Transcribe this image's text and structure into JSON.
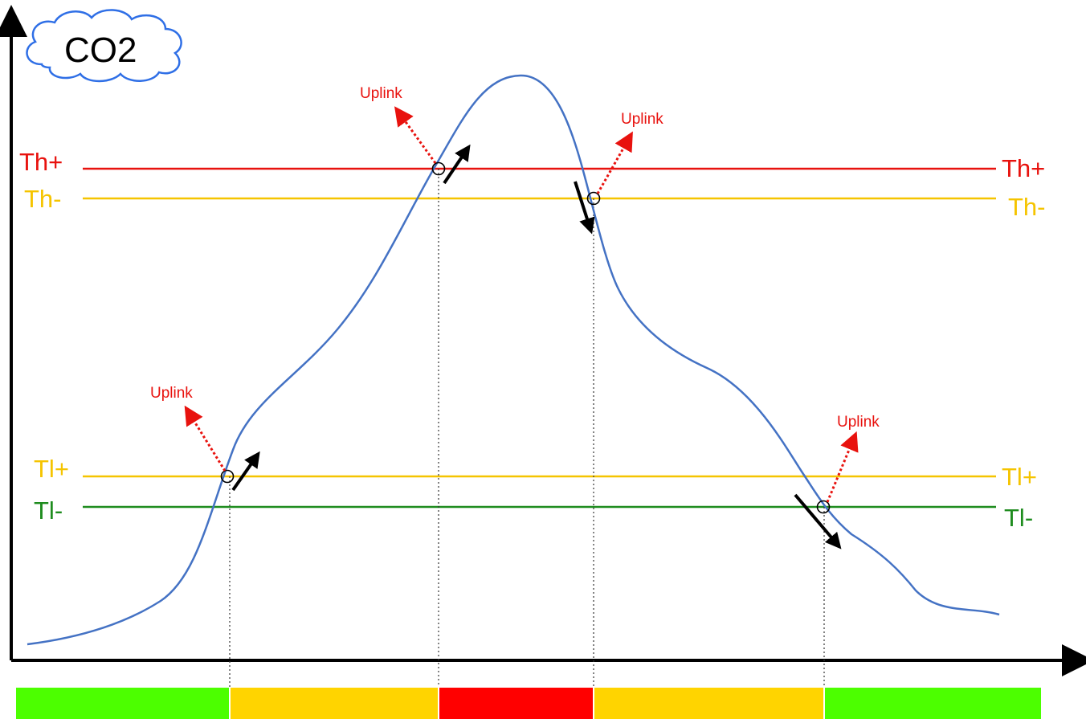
{
  "title": "CO2",
  "thresholds": {
    "th_plus": {
      "label": "Th+",
      "color": "#e8120e"
    },
    "th_minus": {
      "label": "Th-",
      "color": "#f5c400"
    },
    "tl_plus": {
      "label": "Tl+",
      "color": "#f5c400"
    },
    "tl_minus": {
      "label": "Tl-",
      "color": "#1e8c1e"
    }
  },
  "uplink_label": "Uplink",
  "events": [
    {
      "uplink": "Uplink",
      "direction": "rising"
    },
    {
      "uplink": "Uplink",
      "direction": "rising"
    },
    {
      "uplink": "Uplink",
      "direction": "falling"
    },
    {
      "uplink": "Uplink",
      "direction": "falling"
    }
  ],
  "zones": [
    {
      "level": "green",
      "color": "#4cff00"
    },
    {
      "level": "yellow",
      "color": "#ffd400"
    },
    {
      "level": "red",
      "color": "#ff0000"
    },
    {
      "level": "yellow",
      "color": "#ffd400"
    },
    {
      "level": "green",
      "color": "#4cff00"
    }
  ],
  "curve_color": "#4472c4",
  "uplink_color": "#e8120e"
}
